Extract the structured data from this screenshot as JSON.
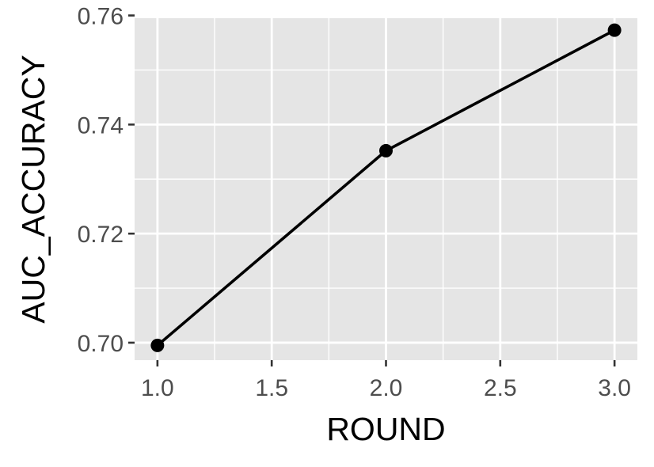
{
  "chart_data": {
    "type": "line",
    "xlabel": "ROUND",
    "ylabel": "AUC_ACCURACY",
    "x": [
      1.0,
      2.0,
      3.0
    ],
    "series": [
      {
        "values": [
          0.6995,
          0.7352,
          0.7573
        ]
      }
    ],
    "xlim": [
      0.9,
      3.1
    ],
    "ylim": [
      0.6968,
      0.7595
    ],
    "x_ticks": [
      1.0,
      1.5,
      2.0,
      2.5,
      3.0
    ],
    "x_tick_labels": [
      "1.0",
      "1.5",
      "2.0",
      "2.5",
      "3.0"
    ],
    "y_ticks": [
      0.7,
      0.72,
      0.74,
      0.76
    ],
    "y_tick_labels": [
      "0.70",
      "0.72",
      "0.74",
      "0.76"
    ],
    "grid": true,
    "legend": "none",
    "colors": {
      "panel": "#e5e5e5",
      "grid": "#ffffff",
      "line": "#000000",
      "tick_text": "#4d4d4d",
      "tick_mark": "#333333",
      "title_text": "#000000"
    }
  }
}
